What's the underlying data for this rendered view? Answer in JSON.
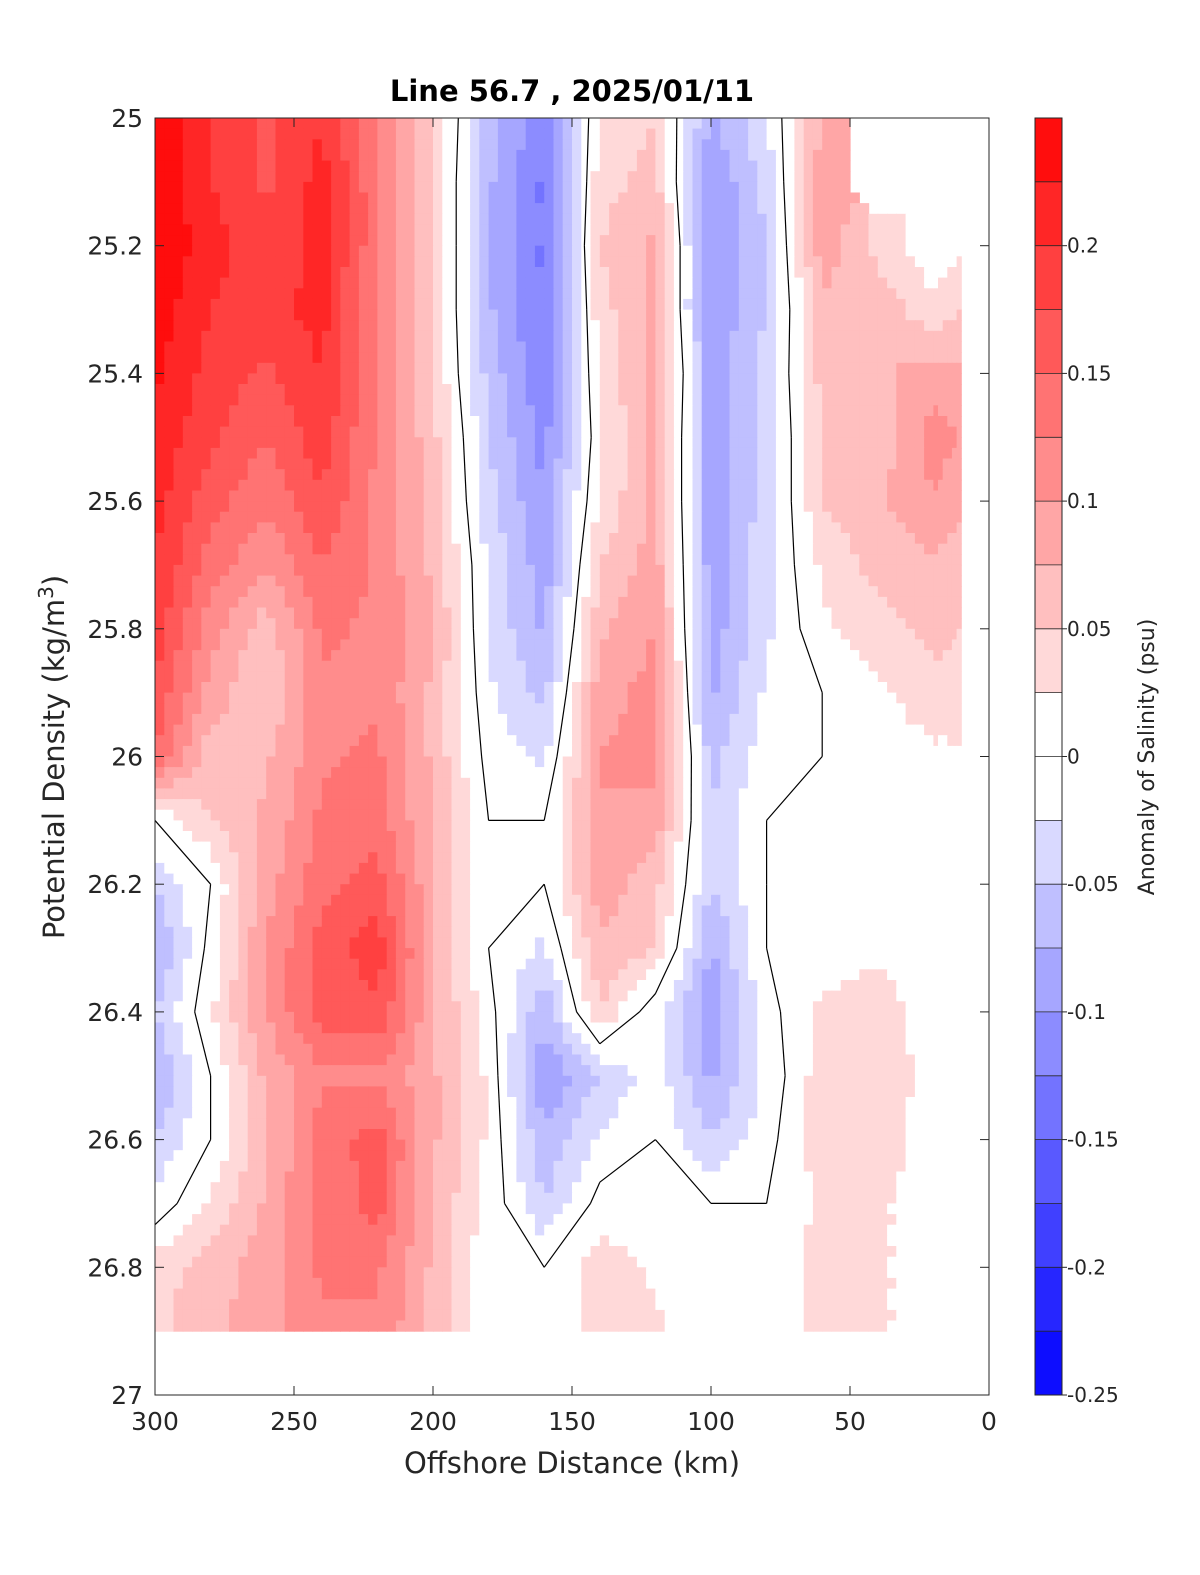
{
  "chart_data": {
    "type": "heatmap",
    "title": "Line 56.7 , 2025/01/11",
    "xlabel": "Offshore Distance (km)",
    "ylabel": "Potential Density (kg/m^3)",
    "ylabel_base": "Potential Density (kg/m",
    "ylabel_sup": "3",
    "ylabel_end": ")",
    "colorbar_label": "Anomaly of Salinity (psu)",
    "xlim": [
      300,
      0
    ],
    "ylim": [
      25,
      27
    ],
    "x_reversed": true,
    "y_reversed": true,
    "xticks": [
      300,
      250,
      200,
      150,
      100,
      50,
      0
    ],
    "xtick_labels": [
      "300",
      "250",
      "200",
      "150",
      "100",
      "50",
      "0"
    ],
    "yticks": [
      25,
      25.2,
      25.4,
      25.6,
      25.8,
      26,
      26.2,
      26.4,
      26.6,
      26.8,
      27
    ],
    "ytick_labels": [
      "25",
      "25.2",
      "25.4",
      "25.6",
      "25.8",
      "26",
      "26.2",
      "26.4",
      "26.6",
      "26.8",
      "27"
    ],
    "colorbar_range": [
      -0.25,
      0.25
    ],
    "colorbar_ticks": [
      -0.25,
      -0.2,
      -0.15,
      -0.1,
      -0.05,
      0,
      0.05,
      0.1,
      0.15,
      0.2
    ],
    "colorbar_tick_labels": [
      "-0.25",
      "-0.2",
      "-0.15",
      "-0.1",
      "-0.05",
      "0",
      "0.05",
      "0.1",
      "0.15",
      "0.2"
    ],
    "colorbar_levels": 20,
    "colormap": {
      "negative": "#0000ff",
      "zero": "#ffffff",
      "positive": "#ff0000"
    },
    "zero_contour_color": "#000000",
    "data_note": "",
    "grid_x": [
      300,
      280,
      260,
      240,
      220,
      200,
      180,
      160,
      140,
      120,
      100,
      80,
      60,
      40,
      20,
      10
    ],
    "grid_y": [
      25,
      25.1,
      25.2,
      25.3,
      25.4,
      25.5,
      25.6,
      25.7,
      25.8,
      25.9,
      26,
      26.1,
      26.2,
      26.3,
      26.4,
      26.5,
      26.6,
      26.7,
      26.8,
      26.9
    ],
    "values": [
      [
        0.25,
        0.2,
        0.17,
        0.2,
        0.13,
        0.05,
        -0.06,
        -0.12,
        0.03,
        0.05,
        -0.08,
        -0.03,
        0.08,
        null,
        null,
        null
      ],
      [
        0.25,
        0.2,
        0.17,
        0.21,
        0.13,
        0.05,
        -0.07,
        -0.13,
        0.04,
        0.06,
        -0.1,
        -0.04,
        0.09,
        null,
        null,
        null
      ],
      [
        0.25,
        0.21,
        0.18,
        0.21,
        0.13,
        0.05,
        -0.07,
        -0.13,
        0.05,
        0.08,
        -0.1,
        -0.05,
        0.09,
        0.04,
        0.01,
        0.02
      ],
      [
        0.24,
        0.2,
        0.19,
        0.21,
        0.12,
        0.05,
        -0.07,
        -0.13,
        0.04,
        0.08,
        -0.1,
        -0.05,
        0.07,
        0.07,
        0.03,
        0.05
      ],
      [
        0.23,
        0.19,
        0.17,
        0.2,
        0.12,
        0.05,
        -0.06,
        -0.12,
        0.03,
        0.09,
        -0.09,
        -0.04,
        0.06,
        0.07,
        0.09,
        0.08
      ],
      [
        0.22,
        0.18,
        0.15,
        0.19,
        0.12,
        0.06,
        -0.05,
        -0.11,
        0.02,
        0.08,
        -0.09,
        -0.04,
        0.05,
        0.06,
        0.11,
        0.1
      ],
      [
        0.21,
        0.16,
        0.13,
        0.17,
        0.12,
        0.06,
        -0.04,
        -0.1,
        0.03,
        0.08,
        -0.09,
        -0.04,
        0.05,
        0.07,
        0.1,
        0.08
      ],
      [
        0.2,
        0.14,
        0.1,
        0.15,
        0.12,
        0.07,
        -0.03,
        -0.09,
        0.05,
        0.09,
        -0.09,
        -0.03,
        0.03,
        0.06,
        0.07,
        0.06
      ],
      [
        0.19,
        0.11,
        0.06,
        0.13,
        0.12,
        0.08,
        -0.03,
        -0.08,
        0.07,
        0.1,
        -0.09,
        -0.03,
        0.02,
        0.04,
        0.06,
        0.05
      ],
      [
        0.17,
        0.09,
        0.05,
        0.12,
        0.12,
        0.07,
        -0.02,
        -0.06,
        0.09,
        0.11,
        -0.08,
        -0.02,
        0.0,
        0.02,
        0.04,
        0.04
      ],
      [
        0.15,
        0.06,
        0.07,
        0.12,
        0.13,
        0.07,
        -0.01,
        -0.03,
        0.1,
        0.11,
        -0.06,
        -0.01,
        0.0,
        0.01,
        0.02,
        0.02
      ],
      [
        0.0,
        0.05,
        0.08,
        0.13,
        0.14,
        0.07,
        0.0,
        0.0,
        0.1,
        0.09,
        -0.05,
        0.0,
        0.01,
        0.01,
        0.01,
        0.01
      ],
      [
        -0.05,
        0.0,
        0.09,
        0.14,
        0.16,
        0.08,
        0.0,
        0.0,
        0.09,
        0.06,
        -0.05,
        0.0,
        0.0,
        0.01,
        0.01,
        0.01
      ],
      [
        -0.08,
        0.01,
        0.1,
        0.16,
        0.19,
        0.08,
        0.0,
        -0.03,
        0.07,
        0.05,
        -0.08,
        0.0,
        0.01,
        0.02,
        0.01,
        0.01
      ],
      [
        -0.05,
        0.02,
        0.1,
        0.16,
        0.17,
        0.08,
        0.01,
        -0.07,
        0.05,
        -0.02,
        -0.09,
        -0.01,
        0.03,
        0.04,
        0.01,
        0.01
      ],
      [
        -0.08,
        0.0,
        0.08,
        0.12,
        0.12,
        0.08,
        0.02,
        -0.1,
        -0.05,
        -0.01,
        -0.08,
        -0.02,
        0.04,
        0.05,
        0.01,
        0.01
      ],
      [
        -0.05,
        0.0,
        0.07,
        0.14,
        0.16,
        0.08,
        0.02,
        -0.07,
        -0.02,
        0.0,
        -0.05,
        -0.01,
        0.04,
        0.04,
        0.01,
        0.01
      ],
      [
        -0.02,
        0.03,
        0.08,
        0.13,
        0.16,
        0.07,
        0.02,
        -0.05,
        0.01,
        0.01,
        0.0,
        0.0,
        0.03,
        0.03,
        0.01,
        0.01
      ],
      [
        0.04,
        0.06,
        0.09,
        0.13,
        0.13,
        0.07,
        0.0,
        0.0,
        0.04,
        0.02,
        0.0,
        0.0,
        0.04,
        0.03,
        0.01,
        0.01
      ],
      [
        0.04,
        0.07,
        0.09,
        0.12,
        0.12,
        0.07,
        0.0,
        0.0,
        0.04,
        0.03,
        0.0,
        0.0,
        0.04,
        0.03,
        0.01,
        0.01
      ]
    ]
  }
}
